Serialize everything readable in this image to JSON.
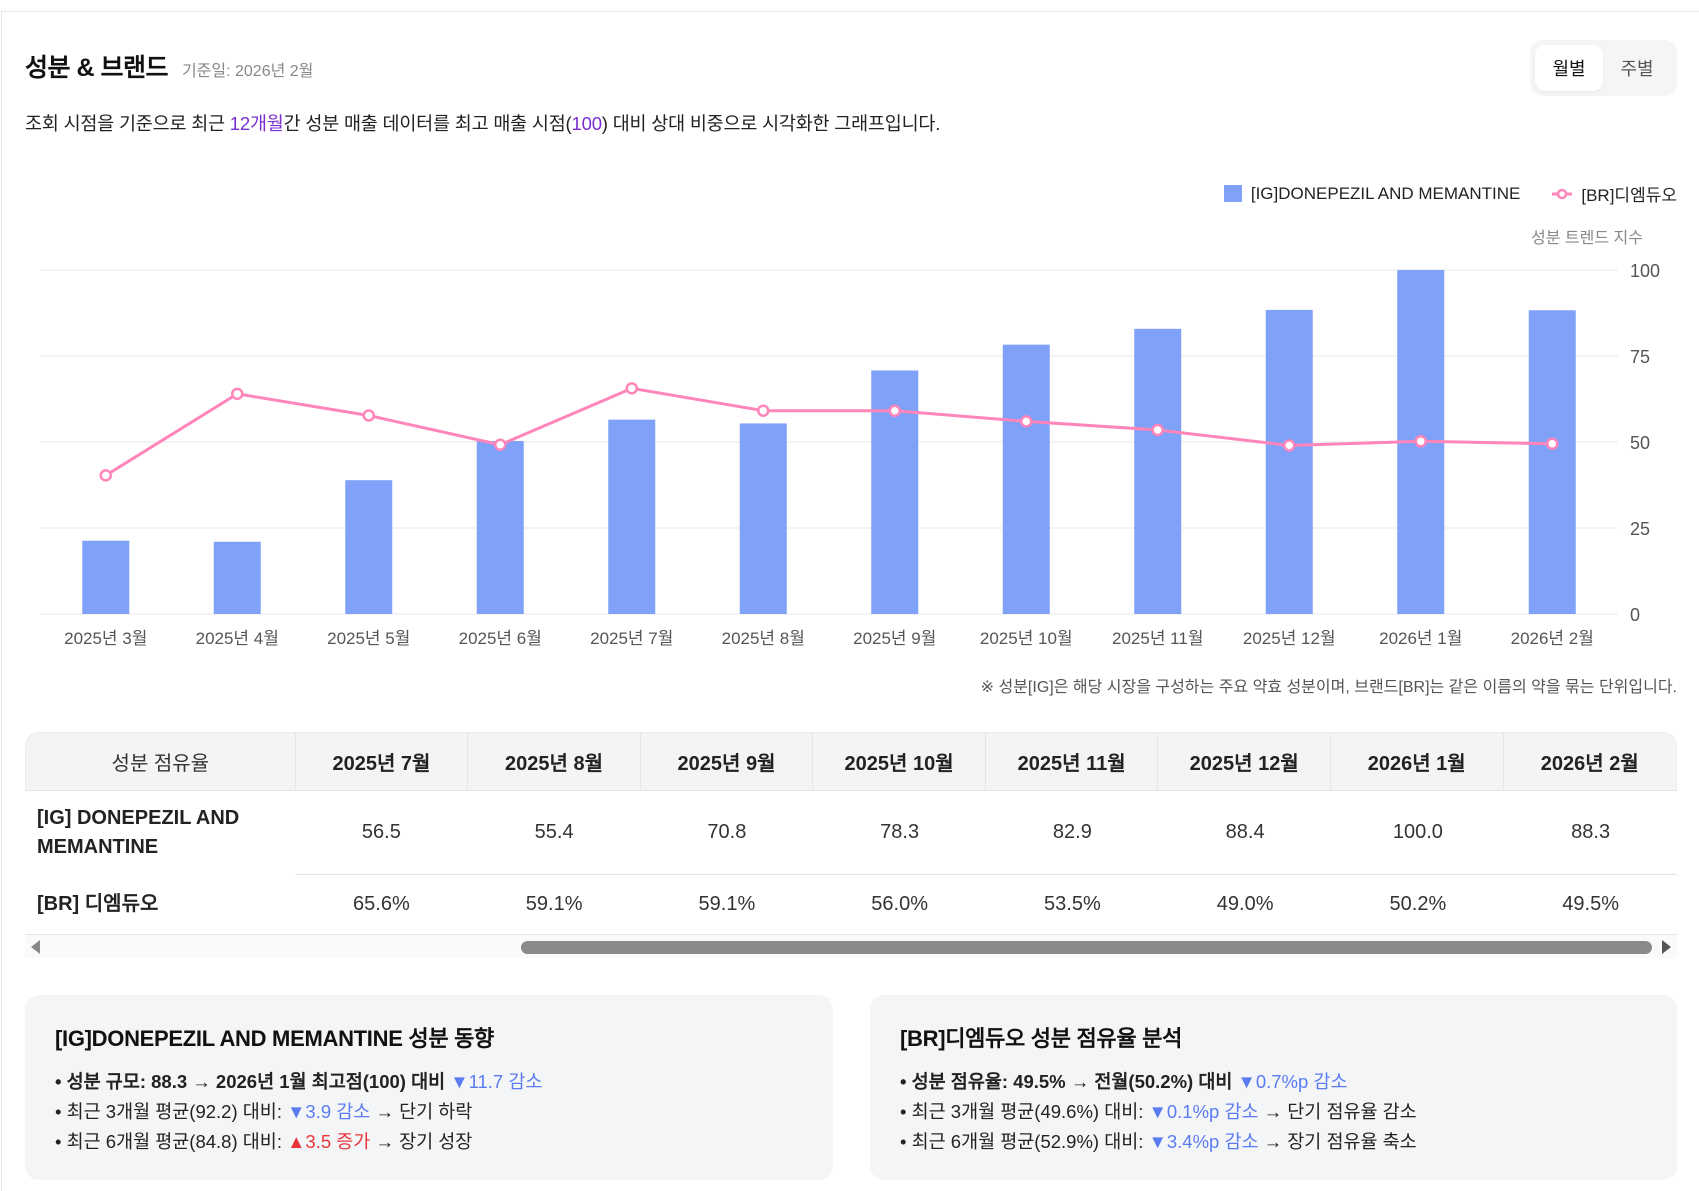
{
  "header": {
    "title": "성분 & 브랜드",
    "base_date": "기준일: 2026년 2월",
    "toggle": [
      {
        "label": "월별",
        "active": true
      },
      {
        "label": "주별",
        "active": false
      }
    ]
  },
  "description": {
    "part1": "조회 시점을 기준으로 최근 ",
    "highlight1": "12개월",
    "part2": "간 성분 매출 데이터를 최고 매출 시점(",
    "highlight2": "100",
    "part3": ") 대비 상대 비중으로 시각화한 그래프입니다."
  },
  "colors": {
    "bar": "#7FA1F8",
    "line": "#FF85BA",
    "highlight": "#7b2fd0",
    "down": "#5b7cf0",
    "up": "#e8363d"
  },
  "chart_data": {
    "type": "bar",
    "title": "",
    "xlabel": "",
    "ylabel": "성분 트렌드 지수",
    "ylim": [
      0,
      100
    ],
    "yticks": [
      "0",
      "25",
      "50",
      "75",
      "100"
    ],
    "grid": true,
    "legend_position": "top-right",
    "categories": [
      "2025년 3월",
      "2025년 4월",
      "2025년 5월",
      "2025년 6월",
      "2025년 7월",
      "2025년 8월",
      "2025년 9월",
      "2025년 10월",
      "2025년 11월",
      "2025년 12월",
      "2026년 1월",
      "2026년 2월"
    ],
    "series": [
      {
        "name": "[IG]DONEPEZIL AND MEMANTINE",
        "type": "bar",
        "values": [
          21.3,
          21.0,
          38.9,
          50.3,
          56.5,
          55.4,
          70.8,
          78.3,
          82.9,
          88.4,
          100.0,
          88.3
        ]
      },
      {
        "name": "[BR]디엠듀오",
        "type": "line",
        "values": [
          40.3,
          64.0,
          57.7,
          49.2,
          65.6,
          59.1,
          59.1,
          56.0,
          53.5,
          49.0,
          50.2,
          49.5
        ]
      }
    ]
  },
  "footnote": "※ 성분[IG]은 해당 시장을 구성하는 주요 약효 성분이며, 브랜드[BR]는 같은 이름의 약을 묶는 단위입니다.",
  "table": {
    "header_label": "성분 점유율",
    "columns": [
      "2025년 7월",
      "2025년 8월",
      "2025년 9월",
      "2025년 10월",
      "2025년 11월",
      "2025년 12월",
      "2026년 1월",
      "2026년 2월"
    ],
    "rows": [
      {
        "label": "[IG] DONEPEZIL AND MEMANTINE",
        "values": [
          "56.5",
          "55.4",
          "70.8",
          "78.3",
          "82.9",
          "88.4",
          "100.0",
          "88.3"
        ]
      },
      {
        "label": "[BR] 디엠듀오",
        "values": [
          "65.6%",
          "59.1%",
          "59.1%",
          "56.0%",
          "53.5%",
          "49.0%",
          "50.2%",
          "49.5%"
        ]
      }
    ]
  },
  "cards": [
    {
      "title": "[IG]DONEPEZIL AND MEMANTINE 성분 동향",
      "lines": [
        {
          "pre": "• 성분 규모: 88.3 → 2026년 1월 최고점(100) 대비 ",
          "delta": "▼11.7 감소",
          "post": ""
        },
        {
          "pre": "• 최근 3개월 평균(92.2) 대비: ",
          "delta": "▼3.9 감소",
          "post": " → 단기 하락"
        },
        {
          "pre": "• 최근 6개월 평균(84.8) 대비: ",
          "delta": "▲3.5 증가",
          "post": " → 장기 성장"
        }
      ]
    },
    {
      "title": "[BR]디엠듀오 성분 점유율 분석",
      "lines": [
        {
          "pre": "• 성분 점유율: 49.5% → 전월(50.2%) 대비 ",
          "delta": "▼0.7%p 감소",
          "post": ""
        },
        {
          "pre": "• 최근 3개월 평균(49.6%) 대비: ",
          "delta": "▼0.1%p 감소",
          "post": " → 단기 점유율 감소"
        },
        {
          "pre": "• 최근 6개월 평균(52.9%) 대비: ",
          "delta": "▼3.4%p 감소",
          "post": " → 장기 점유율 축소"
        }
      ]
    }
  ]
}
